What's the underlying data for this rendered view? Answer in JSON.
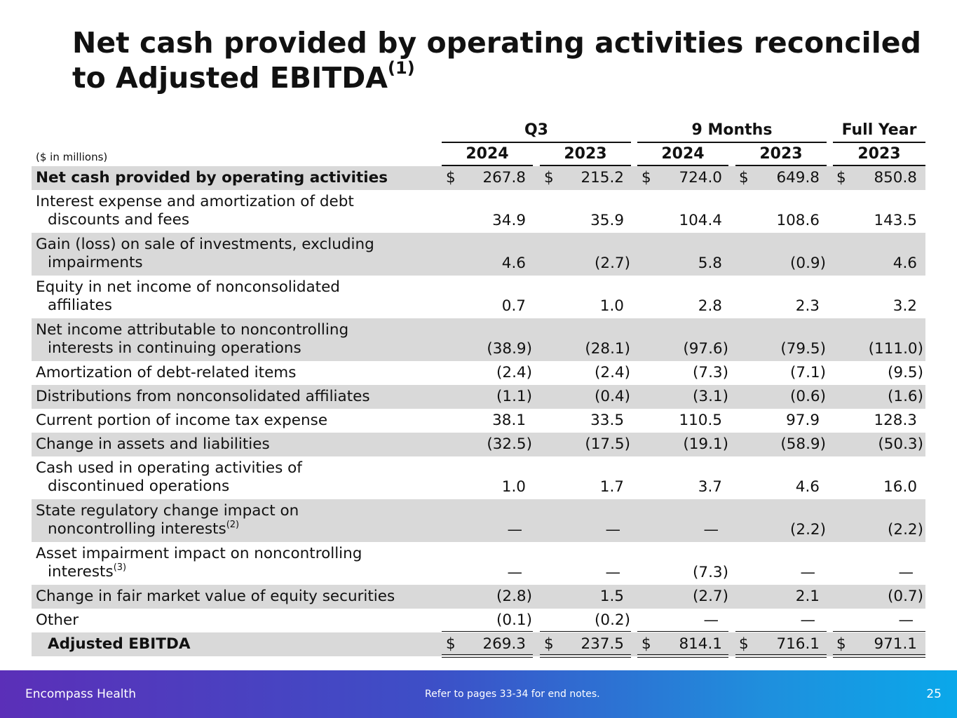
{
  "title": {
    "text": "Net cash provided by operating activities reconciled to Adjusted EBITDA",
    "superscript": "(1)"
  },
  "units_note": "($ in millions)",
  "header": {
    "groups": [
      "Q3",
      "9 Months",
      "Full Year"
    ],
    "years": [
      "2024",
      "2023",
      "2024",
      "2023",
      "2023"
    ]
  },
  "rows": [
    {
      "label1": "Net cash provided by operating activities",
      "label2": "",
      "sup": "",
      "values": [
        "267.8",
        "215.2",
        "724.0",
        "649.8",
        "850.8"
      ]
    },
    {
      "label1": "Interest expense and amortization of debt",
      "label2": "discounts and fees",
      "sup": "",
      "values": [
        "34.9",
        "35.9",
        "104.4",
        "108.6",
        "143.5"
      ]
    },
    {
      "label1": "Gain (loss) on sale of investments, excluding",
      "label2": "impairments",
      "sup": "",
      "values": [
        "4.6",
        "(2.7)",
        "5.8",
        "(0.9)",
        "4.6"
      ]
    },
    {
      "label1": "Equity in net income of nonconsolidated",
      "label2": "affiliates",
      "sup": "",
      "values": [
        "0.7",
        "1.0",
        "2.8",
        "2.3",
        "3.2"
      ]
    },
    {
      "label1": "Net income attributable to noncontrolling",
      "label2": "interests in continuing operations",
      "sup": "",
      "values": [
        "(38.9)",
        "(28.1)",
        "(97.6)",
        "(79.5)",
        "(111.0)"
      ]
    },
    {
      "label1": "Amortization of debt-related items",
      "label2": "",
      "sup": "",
      "values": [
        "(2.4)",
        "(2.4)",
        "(7.3)",
        "(7.1)",
        "(9.5)"
      ]
    },
    {
      "label1": "Distributions from nonconsolidated affiliates",
      "label2": "",
      "sup": "",
      "values": [
        "(1.1)",
        "(0.4)",
        "(3.1)",
        "(0.6)",
        "(1.6)"
      ]
    },
    {
      "label1": "Current portion of income tax expense",
      "label2": "",
      "sup": "",
      "values": [
        "38.1",
        "33.5",
        "110.5",
        "97.9",
        "128.3"
      ]
    },
    {
      "label1": "Change in assets and liabilities",
      "label2": "",
      "sup": "",
      "values": [
        "(32.5)",
        "(17.5)",
        "(19.1)",
        "(58.9)",
        "(50.3)"
      ]
    },
    {
      "label1": "Cash used in operating activities of",
      "label2": "discontinued operations",
      "sup": "",
      "values": [
        "1.0",
        "1.7",
        "3.7",
        "4.6",
        "16.0"
      ]
    },
    {
      "label1": "State regulatory change impact on",
      "label2": "noncontrolling interests",
      "sup": "(2)",
      "values": [
        "—",
        "—",
        "—",
        "(2.2)",
        "(2.2)"
      ]
    },
    {
      "label1": "Asset impairment impact on noncontrolling",
      "label2": "interests",
      "sup": "(3)",
      "values": [
        "—",
        "—",
        "(7.3)",
        "—",
        "—"
      ]
    },
    {
      "label1": "Change in fair market value of equity securities",
      "label2": "",
      "sup": "",
      "values": [
        "(2.8)",
        "1.5",
        "(2.7)",
        "2.1",
        "(0.7)"
      ]
    },
    {
      "label1": "Other",
      "label2": "",
      "sup": "",
      "values": [
        "(0.1)",
        "(0.2)",
        "—",
        "—",
        "—"
      ]
    },
    {
      "label1": "Adjusted EBITDA",
      "label2": "",
      "sup": "",
      "values": [
        "269.3",
        "237.5",
        "814.1",
        "716.1",
        "971.1"
      ]
    }
  ],
  "currency_symbol": "$",
  "footer": {
    "brand": "Encompass Health",
    "note": "Refer to pages 33-34 for end notes.",
    "page": "25"
  }
}
